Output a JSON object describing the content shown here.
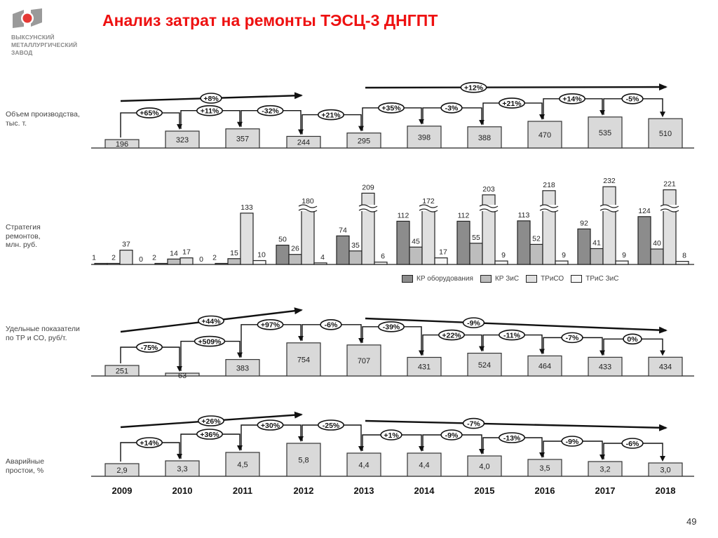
{
  "header": {
    "title": "Анализ затрат на ремонты ТЭСЦ-3 ДНГПТ",
    "logo_lines": [
      "ВЫКСУНСКИЙ",
      "МЕТАЛЛУРГИЧЕСКИЙ",
      "ЗАВОД"
    ]
  },
  "page_number": "49",
  "colors": {
    "title": "#ee1111",
    "box_fill": "#d9d9d9",
    "kr_equipment": "#8c8c8c",
    "kr_zis": "#bdbdbd",
    "triso": "#e0e0e0",
    "tris_zis": "#f7f7f7"
  },
  "legend": [
    {
      "label": "КР оборудования",
      "color": "#8c8c8c"
    },
    {
      "label": "КР ЗиС",
      "color": "#bdbdbd"
    },
    {
      "label": "ТРиСО",
      "color": "#e0e0e0"
    },
    {
      "label": "ТРиС ЗиС",
      "color": "#f7f7f7"
    }
  ],
  "rows": {
    "production": {
      "label": "Объем производства, тыс. т."
    },
    "strategy": {
      "label": "Стратегия ремонтов, млн. руб."
    },
    "specific": {
      "label": "Удельные показатели по  ТР и СО, руб/т."
    },
    "downtime": {
      "label": "Аварийные простои, %"
    }
  },
  "chart_data": [
    {
      "type": "bar",
      "title": "Объем производства, тыс. т.",
      "categories": [
        "2009",
        "2010",
        "2011",
        "2012",
        "2013",
        "2014",
        "2015",
        "2016",
        "2017",
        "2018"
      ],
      "values": [
        196,
        323,
        357,
        244,
        295,
        398,
        388,
        470,
        535,
        510
      ],
      "labels": [
        "196",
        "323",
        "357",
        "244",
        "295",
        "398",
        "388",
        "470",
        "535",
        "510"
      ],
      "yoy_changes": [
        "+65%",
        "+11%",
        "-32%",
        "+21%",
        "+35%",
        "-3%",
        "+21%",
        "+14%",
        "-5%"
      ],
      "trend_arrows": [
        {
          "from": "2009",
          "to": "2012",
          "label": "+8%"
        },
        {
          "from": "2013",
          "to": "2018",
          "label": "+12%"
        }
      ]
    },
    {
      "type": "bar",
      "title": "Стратегия ремонтов, млн. руб.",
      "categories": [
        "2009",
        "2010",
        "2011",
        "2012",
        "2013",
        "2014",
        "2015",
        "2016",
        "2017",
        "2018"
      ],
      "series": [
        {
          "name": "КР оборудования",
          "values": [
            1,
            2,
            2,
            50,
            74,
            112,
            112,
            113,
            92,
            124
          ]
        },
        {
          "name": "КР ЗиС",
          "values": [
            2,
            14,
            15,
            26,
            35,
            45,
            55,
            52,
            41,
            40
          ]
        },
        {
          "name": "ТРиСО",
          "values": [
            37,
            17,
            133,
            180,
            209,
            172,
            203,
            218,
            232,
            221
          ]
        },
        {
          "name": "ТРиС ЗиС",
          "values": [
            0,
            0,
            10,
            4,
            6,
            17,
            9,
            9,
            9,
            8
          ]
        }
      ],
      "broken_axis_bars": [
        "2012",
        "2013",
        "2014",
        "2015",
        "2016",
        "2017",
        "2018"
      ],
      "legend_position": "bottom-right"
    },
    {
      "type": "bar",
      "title": "Удельные показатели по ТР и СО, руб/т.",
      "categories": [
        "2009",
        "2010",
        "2011",
        "2012",
        "2013",
        "2014",
        "2015",
        "2016",
        "2017",
        "2018"
      ],
      "values": [
        251,
        63,
        383,
        754,
        707,
        431,
        524,
        464,
        433,
        434
      ],
      "labels": [
        "251",
        "63",
        "383",
        "754",
        "707",
        "431",
        "524",
        "464",
        "433",
        "434"
      ],
      "yoy_changes": [
        "-75%",
        "+509%",
        "+97%",
        "-6%",
        "-39%",
        "+22%",
        "-11%",
        "-7%",
        "0%"
      ],
      "trend_arrows": [
        {
          "from": "2009",
          "to": "2012",
          "label": "+44%"
        },
        {
          "from": "2013",
          "to": "2018",
          "label": "-9%"
        }
      ]
    },
    {
      "type": "bar",
      "title": "Аварийные простои, %",
      "categories": [
        "2009",
        "2010",
        "2011",
        "2012",
        "2013",
        "2014",
        "2015",
        "2016",
        "2017",
        "2018"
      ],
      "values": [
        2.9,
        3.3,
        4.5,
        5.8,
        4.4,
        4.4,
        4.0,
        3.5,
        3.2,
        3.0
      ],
      "labels": [
        "2,9",
        "3,3",
        "4,5",
        "5,8",
        "4,4",
        "4,4",
        "4,0",
        "3,5",
        "3,2",
        "3,0"
      ],
      "yoy_changes": [
        "+14%",
        "+36%",
        "+30%",
        "-25%",
        "+1%",
        "-9%",
        "-13%",
        "-9%",
        "-6%"
      ],
      "trend_arrows": [
        {
          "from": "2009",
          "to": "2012",
          "label": "+26%"
        },
        {
          "from": "2013",
          "to": "2018",
          "label": "-7%"
        }
      ]
    }
  ],
  "years": [
    "2009",
    "2010",
    "2011",
    "2012",
    "2013",
    "2014",
    "2015",
    "2016",
    "2017",
    "2018"
  ]
}
